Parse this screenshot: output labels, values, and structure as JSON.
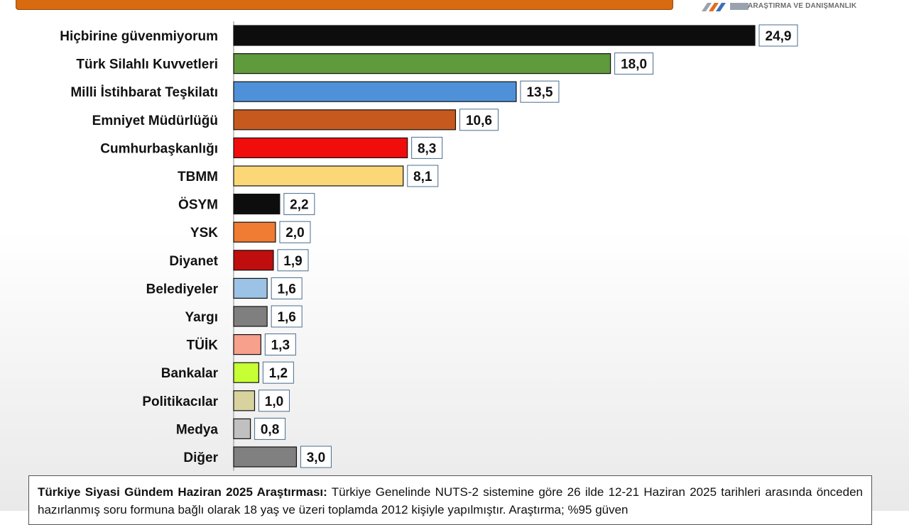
{
  "brand": {
    "subtitle": "ARAŞTIRMA VE DANIŞMANLIK",
    "accent": "#d86a10"
  },
  "chart_data": {
    "type": "bar",
    "orientation": "horizontal",
    "categories": [
      "Hiçbirine güvenmiyorum",
      "Türk Silahlı Kuvvetleri",
      "Milli İstihbarat Teşkilatı",
      "Emniyet Müdürlüğü",
      "Cumhurbaşkanlığı",
      "TBMM",
      "ÖSYM",
      "YSK",
      "Diyanet",
      "Belediyeler",
      "Yargı",
      "TÜİK",
      "Bankalar",
      "Politikacılar",
      "Medya",
      "Diğer"
    ],
    "values": [
      24.9,
      18.0,
      13.5,
      10.6,
      8.3,
      8.1,
      2.2,
      2.0,
      1.9,
      1.6,
      1.6,
      1.3,
      1.2,
      1.0,
      0.8,
      3.0
    ],
    "value_labels": [
      "24,9",
      "18,0",
      "13,5",
      "10,6",
      "8,3",
      "8,1",
      "2,2",
      "2,0",
      "1,9",
      "1,6",
      "1,6",
      "1,3",
      "1,2",
      "1,0",
      "0,8",
      "3,0"
    ],
    "colors": [
      "#0d0d0d",
      "#5f9a3c",
      "#4f91d8",
      "#c65a1e",
      "#f20d0d",
      "#fbd777",
      "#0d0d0d",
      "#ef7c32",
      "#c00d0d",
      "#9cc3e6",
      "#7f7f7f",
      "#f7a08c",
      "#c6ff33",
      "#d8d39e",
      "#c0c0c0",
      "#808080"
    ],
    "xlim": [
      0,
      24.9
    ],
    "title": "",
    "xlabel": "",
    "ylabel": "",
    "grid": false,
    "legend": "none"
  },
  "note": {
    "bold": "Türkiye Siyasi Gündem Haziran 2025 Araştırması:",
    "text": " Türkiye Genelinde NUTS-2 sistemine göre 26 ilde 12-21 Haziran 2025 tarihleri arasında önceden hazırlanmış soru formuna bağlı olarak 18 yaş ve üzeri toplamda 2012 kişiyle yapılmıştır. Araştırma; %95 güven"
  }
}
